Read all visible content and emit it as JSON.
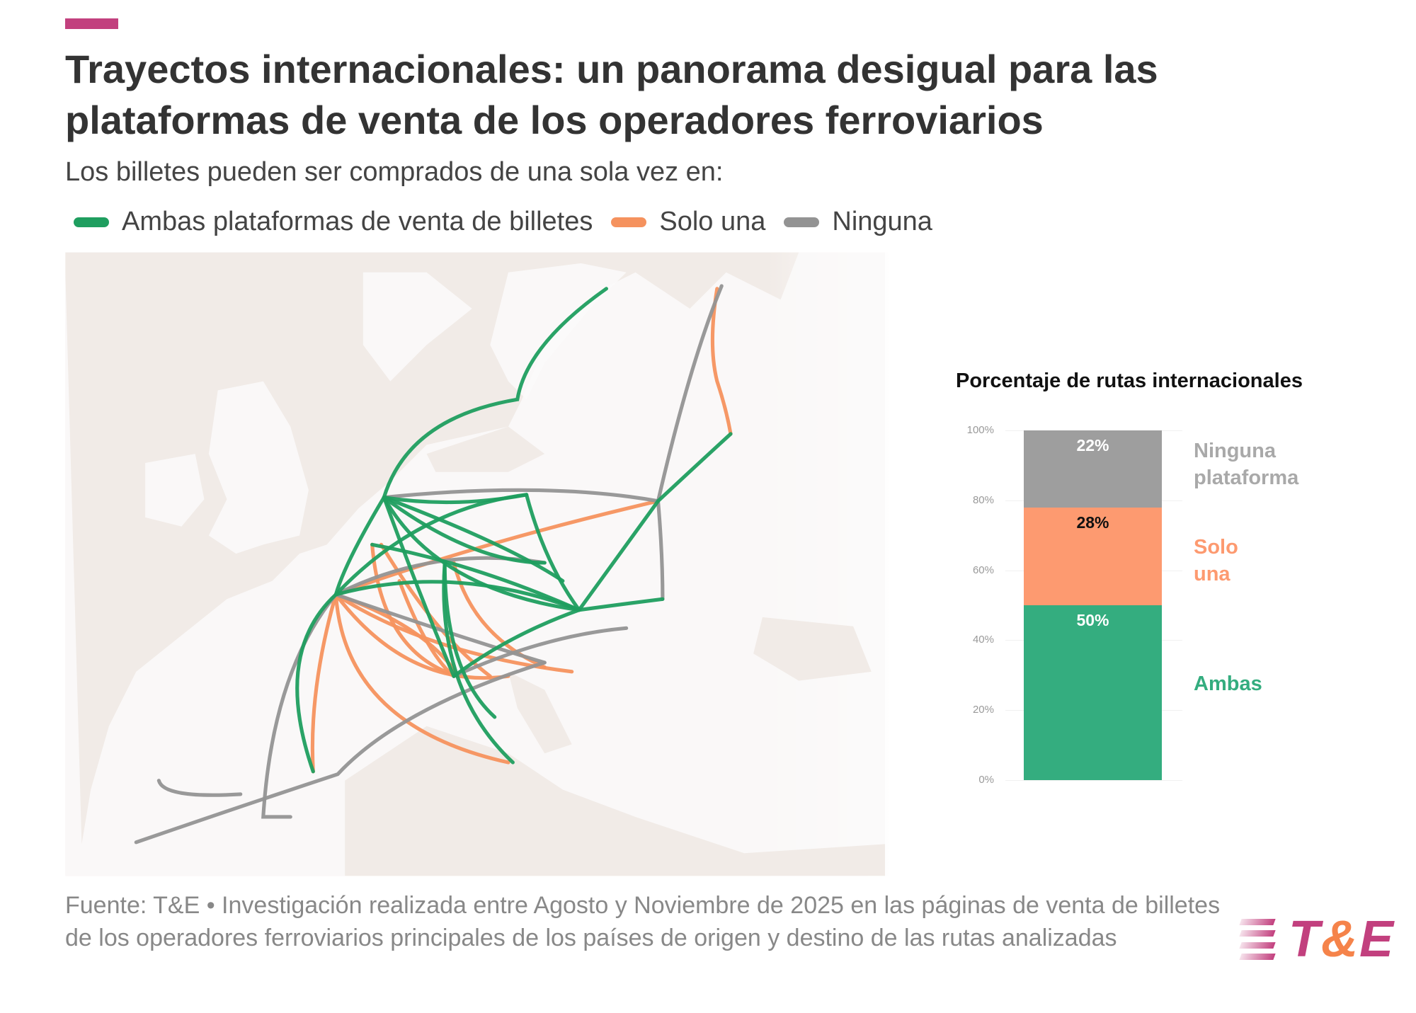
{
  "header": {
    "title": "Trayectos internacionales: un panorama desigual para las plataformas de venta de los operadores ferroviarios",
    "subtitle": "Los billetes pueden ser comprados de una sola vez en:",
    "accent_color": "#c2407e"
  },
  "legend": [
    {
      "label": "Ambas plataformas de venta de billetes",
      "color": "#1f9e5f"
    },
    {
      "label": "Solo una",
      "color": "#f5925e"
    },
    {
      "label": "Ninguna",
      "color": "#939393"
    }
  ],
  "map": {
    "land_color": "#fbfaf9",
    "sea_color": "#f1ebe7"
  },
  "chart_data": {
    "type": "bar",
    "stacked": true,
    "title": "Porcentaje de rutas internacionales",
    "ylim": [
      0,
      100
    ],
    "yticks": [
      "0%",
      "20%",
      "40%",
      "60%",
      "80%",
      "100%"
    ],
    "series": [
      {
        "name": "Ambas",
        "value": 50,
        "label": "50%",
        "color": "#34ad7f",
        "label_color": "#ffffff"
      },
      {
        "name": "Solo una",
        "value": 28,
        "label": "28%",
        "color": "#fd9a70",
        "label_color": "#111111"
      },
      {
        "name": "Ninguna plataforma",
        "value": 22,
        "label": "22%",
        "color": "#9e9e9e",
        "label_color": "#ffffff"
      }
    ]
  },
  "footer": {
    "source": "Fuente: T&E • Investigación realizada entre Agosto y Noviembre de 2025 en las páginas de venta de billetes de los operadores ferroviarios principales de los países de origen y destino de las rutas analizadas",
    "logo_text": "T&E"
  }
}
